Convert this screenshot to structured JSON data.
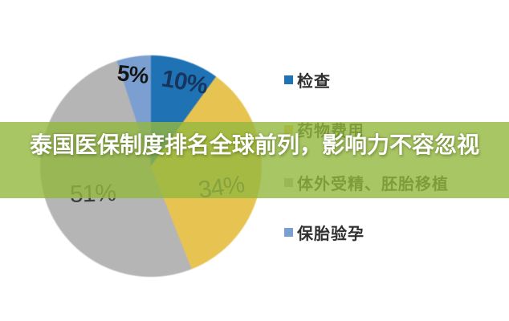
{
  "page": {
    "background": "#ffffff"
  },
  "banner": {
    "text": "泰国医保制度排名全球前列，影响力不容忽视",
    "background_color": "#93b83e",
    "text_color": "#ffffff"
  },
  "chart_data": {
    "type": "pie",
    "start_angle_deg": 0,
    "direction": "clockwise",
    "legend_position": "right",
    "slices": [
      {
        "label": "检查",
        "value": 10,
        "pct_label": "10%",
        "color": "#1f72b4"
      },
      {
        "label": "药物费用",
        "value": 34,
        "pct_label": "34%",
        "color": "#e7c452"
      },
      {
        "label": "体外受精、胚胎移植",
        "value": 51,
        "pct_label": "51%",
        "color": "#b5b5b5"
      },
      {
        "label": "保胎验孕",
        "value": 5,
        "pct_label": "5%",
        "color": "#7b9fd1"
      }
    ]
  }
}
